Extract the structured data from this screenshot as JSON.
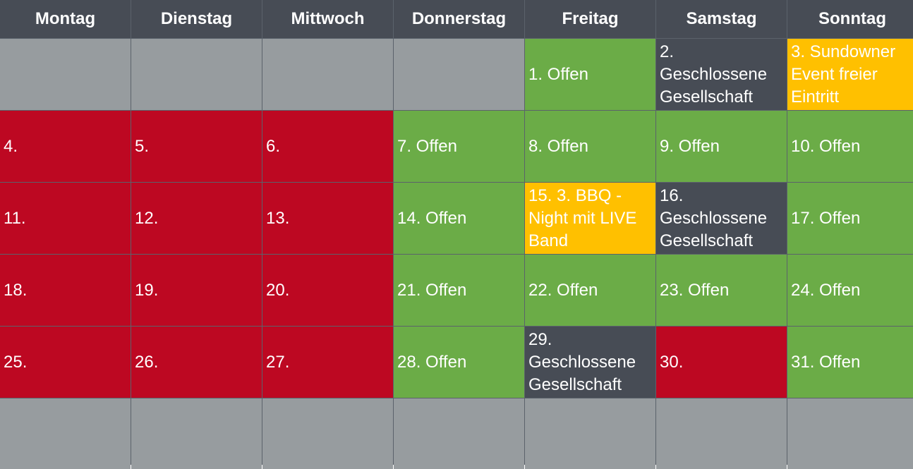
{
  "calendar": {
    "days": [
      "Montag",
      "Dienstag",
      "Mittwoch",
      "Donnerstag",
      "Freitag",
      "Samstag",
      "Sonntag"
    ],
    "weeks": [
      [
        {
          "text": "",
          "status": "empty"
        },
        {
          "text": "",
          "status": "empty"
        },
        {
          "text": "",
          "status": "empty"
        },
        {
          "text": "",
          "status": "empty"
        },
        {
          "text": "1. Offen",
          "status": "open"
        },
        {
          "text": "2. Geschlossene Gesellschaft",
          "status": "private"
        },
        {
          "text": "3. Sundowner Event freier Eintritt",
          "status": "event"
        }
      ],
      [
        {
          "text": "4.",
          "status": "closed"
        },
        {
          "text": "5.",
          "status": "closed"
        },
        {
          "text": "6.",
          "status": "closed"
        },
        {
          "text": "7. Offen",
          "status": "open"
        },
        {
          "text": "8. Offen",
          "status": "open"
        },
        {
          "text": "9. Offen",
          "status": "open"
        },
        {
          "text": "10. Offen",
          "status": "open"
        }
      ],
      [
        {
          "text": "11.",
          "status": "closed"
        },
        {
          "text": "12.",
          "status": "closed"
        },
        {
          "text": "13.",
          "status": "closed"
        },
        {
          "text": "14. Offen",
          "status": "open"
        },
        {
          "text": "15. 3. BBQ - Night mit LIVE Band",
          "status": "event"
        },
        {
          "text": "16. Geschlossene Gesellschaft",
          "status": "private"
        },
        {
          "text": "17. Offen",
          "status": "open"
        }
      ],
      [
        {
          "text": "18.",
          "status": "closed"
        },
        {
          "text": "19.",
          "status": "closed"
        },
        {
          "text": "20.",
          "status": "closed"
        },
        {
          "text": "21. Offen",
          "status": "open"
        },
        {
          "text": "22. Offen",
          "status": "open"
        },
        {
          "text": "23. Offen",
          "status": "open"
        },
        {
          "text": "24. Offen",
          "status": "open"
        }
      ],
      [
        {
          "text": "25.",
          "status": "closed"
        },
        {
          "text": "26.",
          "status": "closed"
        },
        {
          "text": "27.",
          "status": "closed"
        },
        {
          "text": "28. Offen",
          "status": "open"
        },
        {
          "text": "29. Geschlossene Gesellschaft",
          "status": "private"
        },
        {
          "text": "30.",
          "status": "closed"
        },
        {
          "text": "31. Offen",
          "status": "open"
        }
      ],
      [
        {
          "text": "",
          "status": "empty"
        },
        {
          "text": "",
          "status": "empty"
        },
        {
          "text": "",
          "status": "empty"
        },
        {
          "text": "",
          "status": "empty"
        },
        {
          "text": "",
          "status": "empty"
        },
        {
          "text": "",
          "status": "empty"
        },
        {
          "text": "",
          "status": "empty"
        }
      ]
    ]
  },
  "colors": {
    "header": "#474c55",
    "open": "#6bac47",
    "closed": "#bd0822",
    "private": "#474c55",
    "event": "#ffc000",
    "empty": "#979c9f"
  }
}
